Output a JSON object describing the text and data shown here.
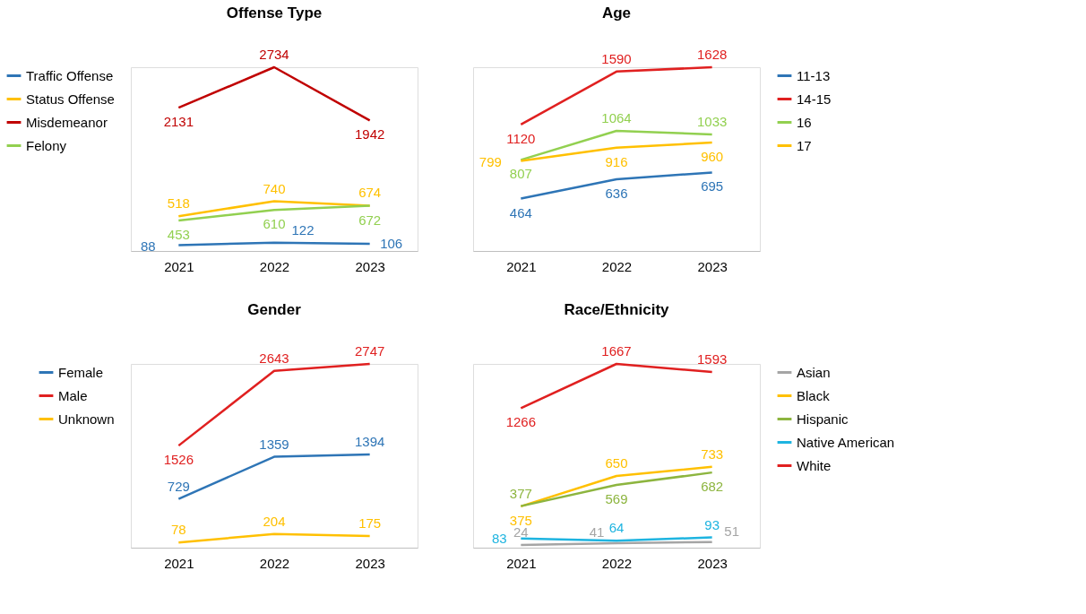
{
  "chart_data": [
    {
      "type": "line",
      "title": "Offense Type",
      "categories": [
        "2021",
        "2022",
        "2023"
      ],
      "data_labels": true,
      "grid": false,
      "legend": "left",
      "series": [
        {
          "name": "Traffic Offense",
          "color": "#2e75b6",
          "values": [
            88,
            122,
            106
          ]
        },
        {
          "name": "Status Offense",
          "color": "#ffc000",
          "values": [
            518,
            740,
            674
          ]
        },
        {
          "name": "Misdemeanor",
          "color": "#c00000",
          "values": [
            2131,
            2734,
            1942
          ]
        },
        {
          "name": "Felony",
          "color": "#92d050",
          "values": [
            453,
            610,
            672
          ]
        }
      ]
    },
    {
      "type": "line",
      "title": "Age",
      "categories": [
        "2021",
        "2022",
        "2023"
      ],
      "data_labels": true,
      "grid": false,
      "legend": "right",
      "series": [
        {
          "name": "11-13",
          "color": "#2e75b6",
          "values": [
            464,
            636,
            695
          ]
        },
        {
          "name": "14-15",
          "color": "#e02020",
          "values": [
            1120,
            1590,
            1628
          ]
        },
        {
          "name": "16",
          "color": "#92d050",
          "values": [
            807,
            1064,
            1033
          ]
        },
        {
          "name": "17",
          "color": "#ffc000",
          "values": [
            799,
            916,
            960
          ]
        }
      ]
    },
    {
      "type": "line",
      "title": "Gender",
      "categories": [
        "2021",
        "2022",
        "2023"
      ],
      "data_labels": true,
      "grid": false,
      "legend": "left",
      "series": [
        {
          "name": "Female",
          "color": "#2e75b6",
          "values": [
            729,
            1359,
            1394
          ]
        },
        {
          "name": "Male",
          "color": "#e02020",
          "values": [
            1526,
            2643,
            2747
          ]
        },
        {
          "name": "Unknown",
          "color": "#ffc000",
          "values": [
            78,
            204,
            175
          ]
        }
      ]
    },
    {
      "type": "line",
      "title": "Race/Ethnicity",
      "categories": [
        "2021",
        "2022",
        "2023"
      ],
      "data_labels": true,
      "grid": false,
      "legend": "right",
      "series": [
        {
          "name": "Asian",
          "color": "#a5a5a5",
          "values": [
            24,
            41,
            51
          ]
        },
        {
          "name": "Black",
          "color": "#ffc000",
          "values": [
            375,
            650,
            733
          ]
        },
        {
          "name": "Hispanic",
          "color": "#8db53f",
          "values": [
            377,
            569,
            682
          ]
        },
        {
          "name": "Native American",
          "color": "#1eb4e0",
          "values": [
            83,
            64,
            93
          ]
        },
        {
          "name": "White",
          "color": "#e02020",
          "values": [
            1266,
            1667,
            1593
          ]
        }
      ]
    }
  ]
}
